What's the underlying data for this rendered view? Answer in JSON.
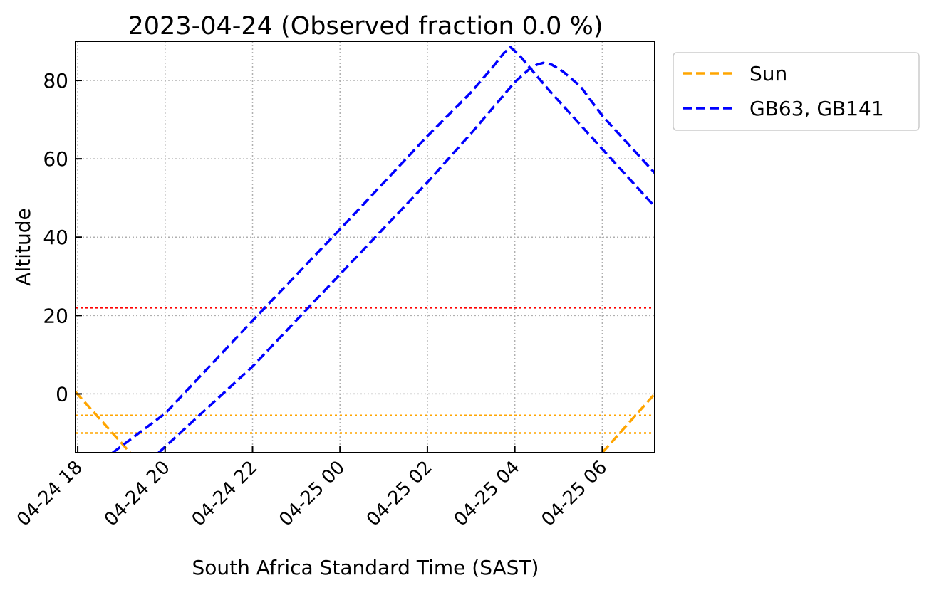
{
  "chart_data": {
    "type": "line",
    "title": "2023-04-24 (Observed fraction 0.0 %)",
    "xlabel": "South Africa Standard Time (SAST)",
    "ylabel": "Altitude",
    "x_units": "hours since 2023-04-24 00:00 SAST",
    "xlim": [
      17.95,
      31.2
    ],
    "ylim": [
      -15,
      90
    ],
    "grid": true,
    "legend_placement": "outside-top-right",
    "xticks": [
      {
        "value": 18,
        "label": "04-24 18"
      },
      {
        "value": 20,
        "label": "04-24 20"
      },
      {
        "value": 22,
        "label": "04-24 22"
      },
      {
        "value": 24,
        "label": "04-25 00"
      },
      {
        "value": 26,
        "label": "04-25 02"
      },
      {
        "value": 28,
        "label": "04-25 04"
      },
      {
        "value": 30,
        "label": "04-25 06"
      }
    ],
    "yticks": [
      {
        "value": 0,
        "label": "0"
      },
      {
        "value": 20,
        "label": "20"
      },
      {
        "value": 40,
        "label": "40"
      },
      {
        "value": 60,
        "label": "60"
      },
      {
        "value": 80,
        "label": "80"
      }
    ],
    "hlines": [
      {
        "value": 22,
        "color": "#ff0000"
      },
      {
        "value": -5.5,
        "color": "#ffa500"
      },
      {
        "value": -10,
        "color": "#ffa500"
      }
    ],
    "series": [
      {
        "name": "Sun",
        "legend": "Sun",
        "color": "#ffa500",
        "segments": [
          [
            [
              17.95,
              0.5
            ],
            [
              19.2,
              -15
            ]
          ],
          [
            [
              30.0,
              -15
            ],
            [
              31.2,
              0
            ]
          ]
        ]
      },
      {
        "name": "GB63",
        "legend": "GB63, GB141",
        "color": "#0000ff",
        "segments": [
          [
            [
              18.8,
              -15
            ],
            [
              20,
              -5
            ],
            [
              22,
              18.7
            ],
            [
              24,
              42
            ],
            [
              26,
              65.8
            ],
            [
              27,
              77
            ],
            [
              27.5,
              83.5
            ],
            [
              27.75,
              87
            ],
            [
              27.9,
              88.5
            ],
            [
              28.1,
              86.5
            ],
            [
              28.4,
              82.5
            ],
            [
              28.8,
              77.3
            ],
            [
              30,
              62.5
            ],
            [
              31.2,
              47.8
            ]
          ]
        ]
      },
      {
        "name": "GB141",
        "legend": "GB63, GB141",
        "color": "#0000ff",
        "segments": [
          [
            [
              19.85,
              -15
            ],
            [
              20,
              -13.5
            ],
            [
              22,
              7
            ],
            [
              24,
              30.5
            ],
            [
              26,
              54
            ],
            [
              27,
              66.5
            ],
            [
              28,
              79.6
            ],
            [
              28.3,
              82.6
            ],
            [
              28.5,
              84
            ],
            [
              28.65,
              84.5
            ],
            [
              28.85,
              84
            ],
            [
              29.1,
              82.3
            ],
            [
              29.5,
              78.5
            ],
            [
              30,
              71
            ],
            [
              31.2,
              56.4
            ]
          ]
        ]
      }
    ],
    "legend": [
      {
        "label": "Sun",
        "color": "#ffa500"
      },
      {
        "label": "GB63, GB141",
        "color": "#0000ff"
      }
    ]
  }
}
